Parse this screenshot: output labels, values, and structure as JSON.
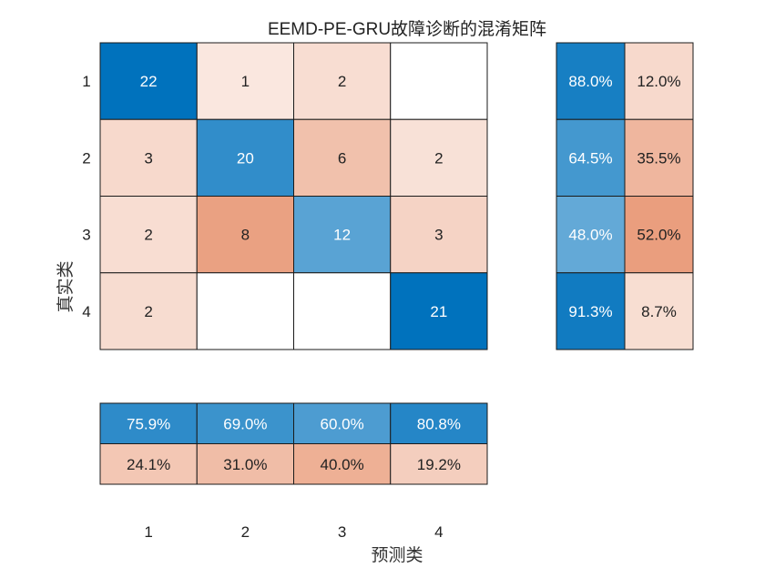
{
  "chart_data": {
    "type": "heatmap",
    "title": "EEMD-PE-GRU故障诊断的混淆矩阵",
    "xlabel": "预测类",
    "ylabel": "真实类",
    "classes": [
      "1",
      "2",
      "3",
      "4"
    ],
    "matrix": [
      [
        22,
        1,
        2,
        null
      ],
      [
        3,
        20,
        6,
        2
      ],
      [
        2,
        8,
        12,
        3
      ],
      [
        2,
        null,
        null,
        21
      ]
    ],
    "row_summary": [
      [
        "88.0%",
        "12.0%"
      ],
      [
        "64.5%",
        "35.5%"
      ],
      [
        "48.0%",
        "52.0%"
      ],
      [
        "91.3%",
        "8.7%"
      ]
    ],
    "col_summary": [
      [
        "75.9%",
        "69.0%",
        "60.0%",
        "80.8%"
      ],
      [
        "24.1%",
        "31.0%",
        "40.0%",
        "19.2%"
      ]
    ],
    "colors": {
      "correct": "#0072BD",
      "incorrect": "#D95319",
      "text_dark": "#222222",
      "text_light": "#ffffff"
    }
  }
}
